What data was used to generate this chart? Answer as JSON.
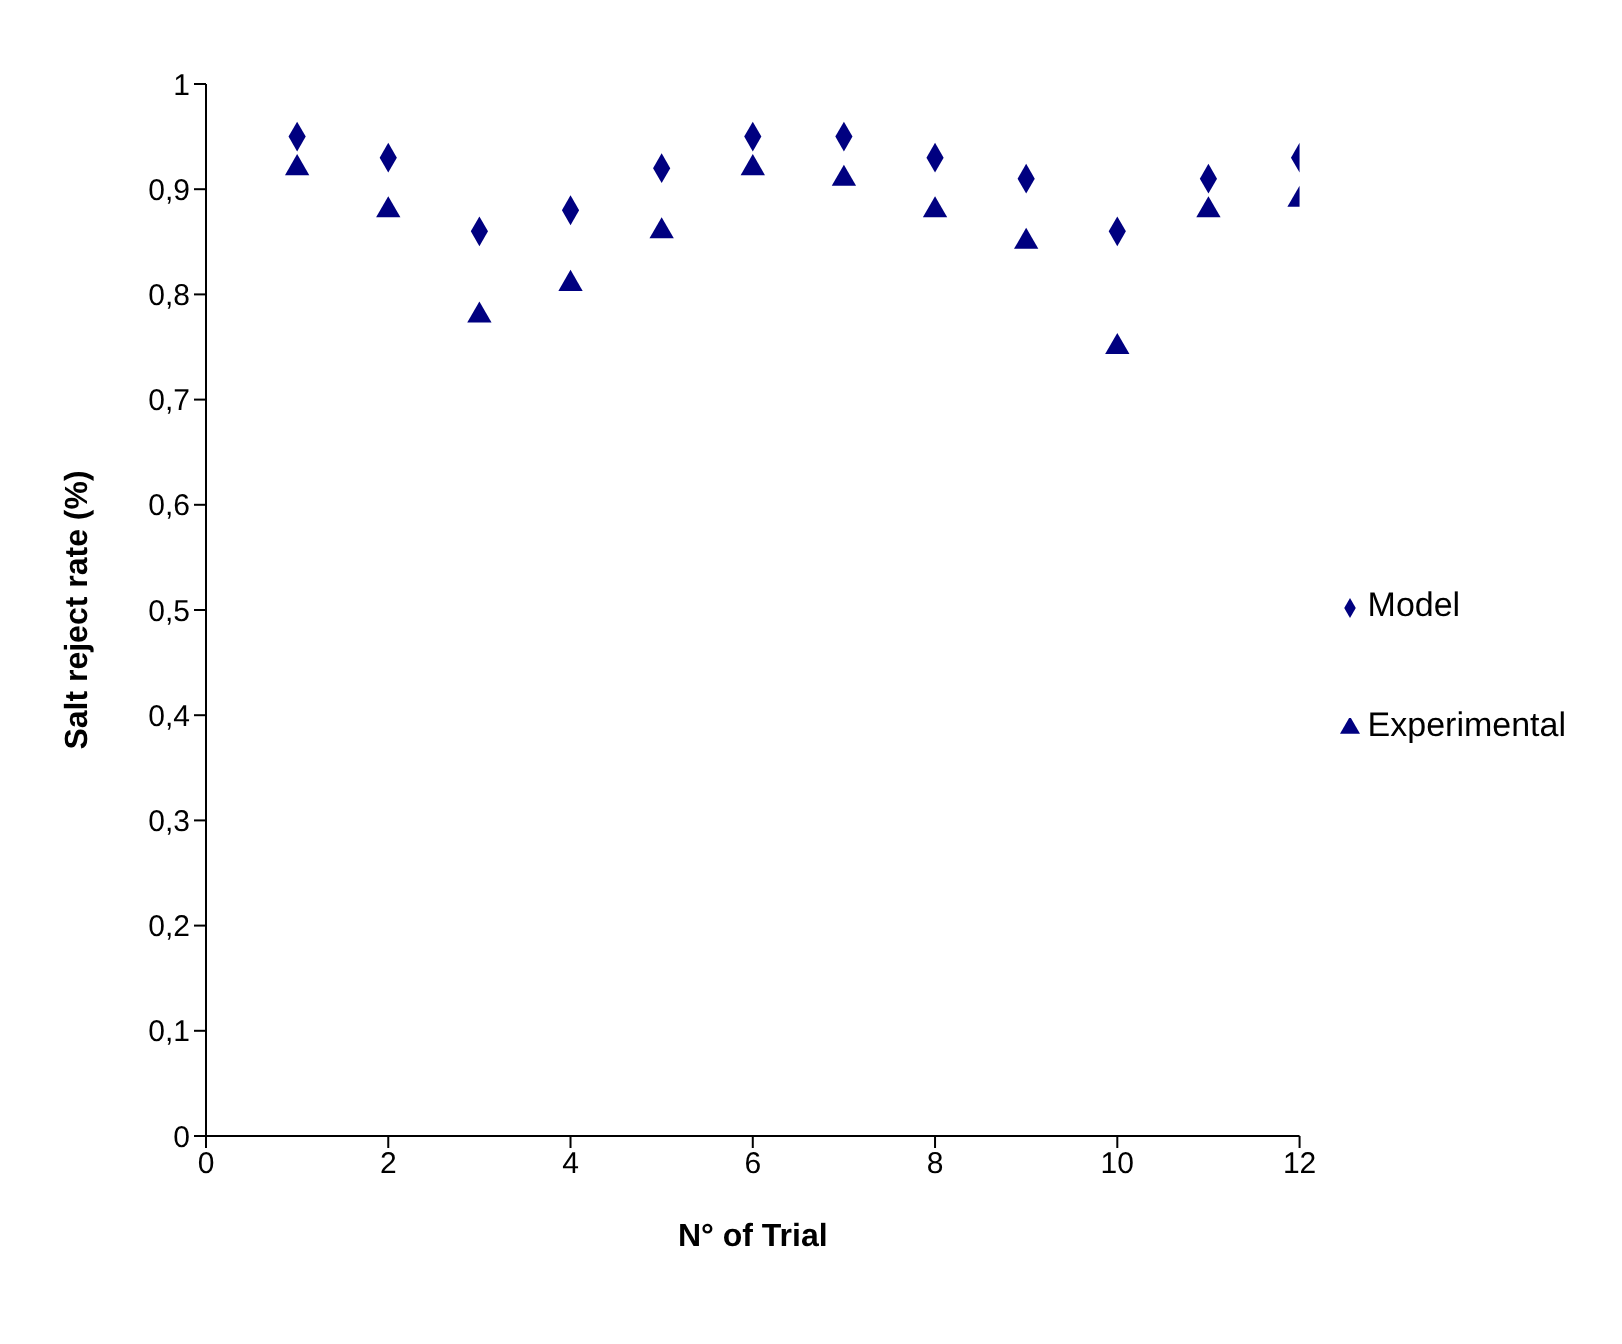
{
  "chart_data": {
    "type": "scatter",
    "xlabel": "N° of Trial",
    "ylabel": "Salt reject rate (%)",
    "x": [
      1,
      2,
      3,
      4,
      5,
      6,
      7,
      8,
      9,
      10,
      11,
      12
    ],
    "series": [
      {
        "name": "Model",
        "color": "#000080",
        "marker": "diamond",
        "values": [
          0.95,
          0.93,
          0.86,
          0.88,
          0.92,
          0.95,
          0.95,
          0.93,
          0.91,
          0.86,
          0.91,
          0.93
        ]
      },
      {
        "name": "Experimental",
        "color": "#000080",
        "marker": "triangle",
        "values": [
          0.92,
          0.88,
          0.78,
          0.81,
          0.86,
          0.92,
          0.91,
          0.88,
          0.85,
          0.75,
          0.88,
          0.89
        ]
      }
    ],
    "xlim": [
      0,
      12
    ],
    "xticks": [
      0,
      2,
      4,
      6,
      8,
      10,
      12
    ],
    "ylim": [
      0,
      1
    ],
    "yticks": [
      0,
      {
        "value": 0.1,
        "label": "0,1"
      },
      {
        "value": 0.2,
        "label": "0,2"
      },
      {
        "value": 0.3,
        "label": "0,3"
      },
      {
        "value": 0.4,
        "label": "0,4"
      },
      {
        "value": 0.5,
        "label": "0,5"
      },
      {
        "value": 0.6,
        "label": "0,6"
      },
      {
        "value": 0.7,
        "label": "0,7"
      },
      {
        "value": 0.8,
        "label": "0,8"
      },
      {
        "value": 0.9,
        "label": "0,9"
      },
      1
    ],
    "grid": false,
    "legend": "right"
  }
}
